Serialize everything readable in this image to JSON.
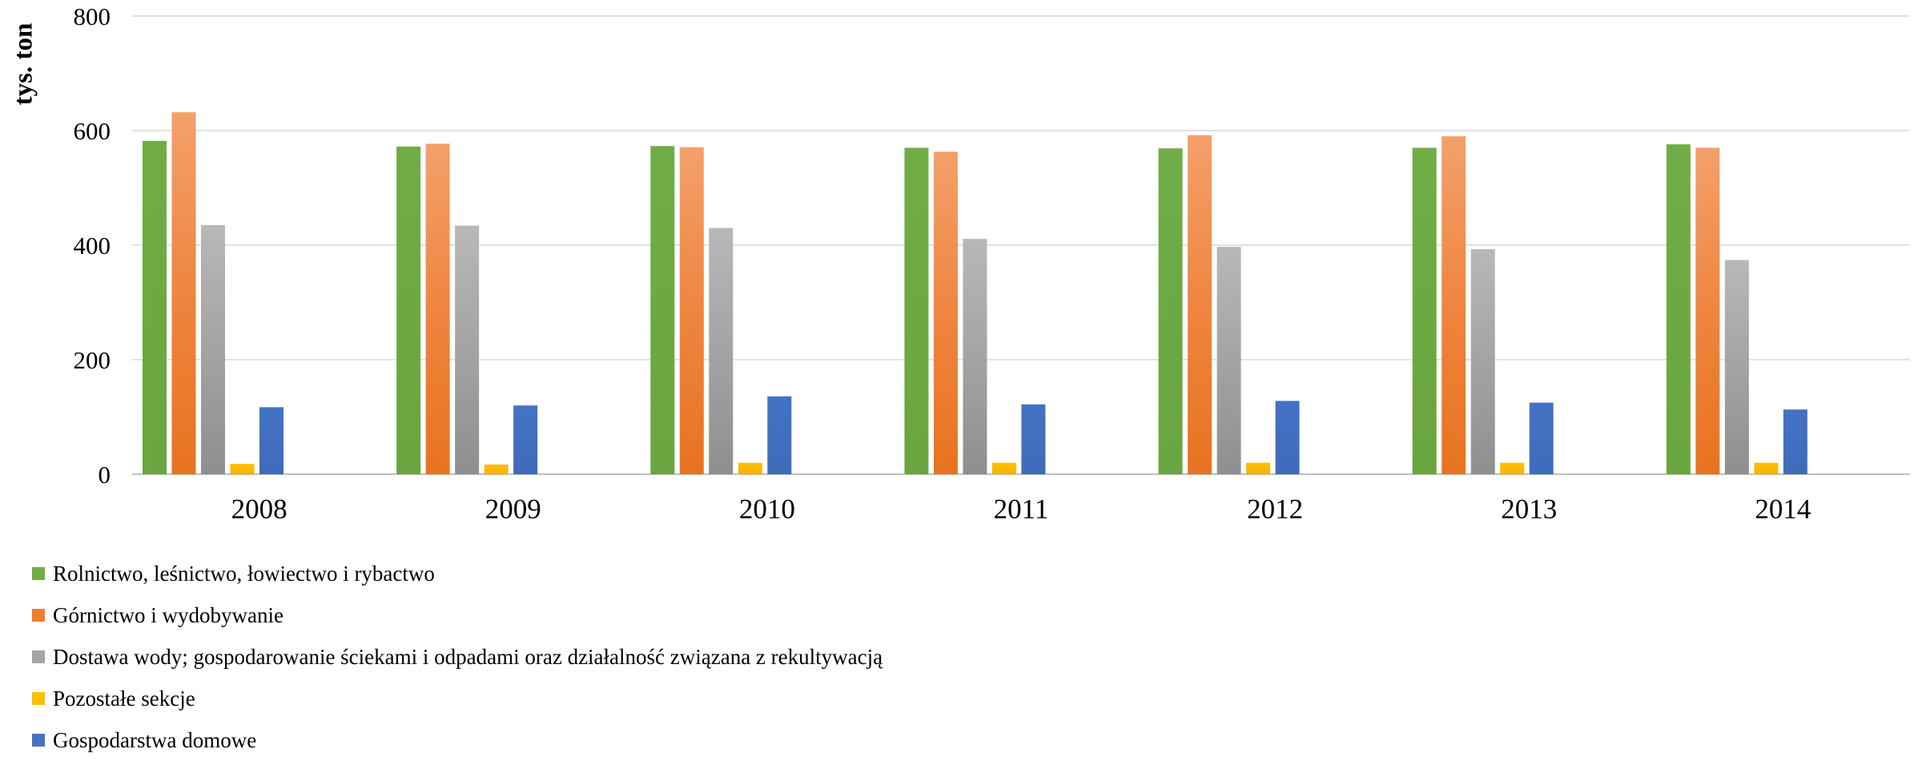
{
  "chart_data": {
    "type": "bar",
    "categories": [
      "2008",
      "2009",
      "2010",
      "2011",
      "2012",
      "2013",
      "2014"
    ],
    "series": [
      {
        "name": "Rolnictwo, leśnictwo, łowiectwo i rybactwo",
        "color": "#70ad47",
        "values": [
          582,
          572,
          573,
          570,
          569,
          570,
          576
        ]
      },
      {
        "name": "Górnictwo i wydobywanie",
        "color": "#ed7d31",
        "values": [
          632,
          577,
          571,
          563,
          592,
          590,
          570
        ]
      },
      {
        "name": "Dostawa wody; gospodarowanie ściekami i odpadami oraz działalność związana z rekultywacją",
        "color": "#a5a5a5",
        "values": [
          435,
          434,
          430,
          411,
          397,
          393,
          374
        ]
      },
      {
        "name": "Pozostałe sekcje",
        "color": "#ffc000",
        "values": [
          18,
          17,
          20,
          20,
          20,
          20,
          20
        ]
      },
      {
        "name": "Gospodarstwa domowe",
        "color": "#4472c4",
        "values": [
          117,
          120,
          136,
          122,
          128,
          125,
          113
        ]
      }
    ],
    "title": "",
    "xlabel": "",
    "ylabel": "tys. ton",
    "ylim": [
      0,
      800
    ],
    "yticks": [
      "0",
      "200",
      "400",
      "600",
      "800"
    ],
    "grid": true,
    "legend": "bottom-left"
  }
}
